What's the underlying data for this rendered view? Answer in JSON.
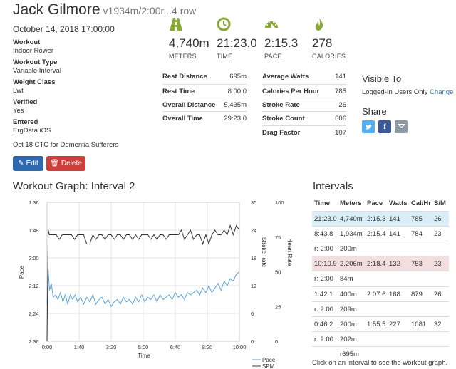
{
  "header": {
    "name": "Jack Gilmore",
    "subtitle": "v1934m/2:00r...4 row"
  },
  "date": "October 14, 2018 17:00:00",
  "fields": [
    {
      "label": "Workout",
      "value": "Indoor Rower"
    },
    {
      "label": "Workout Type",
      "value": "Variable Interval"
    },
    {
      "label": "Weight Class",
      "value": "Lwt"
    },
    {
      "label": "Verified",
      "value": "Yes"
    },
    {
      "label": "Entered",
      "value": "ErgData iOS"
    }
  ],
  "note": "Oct 18 CTC for Dementia Sufferers",
  "buttons": {
    "edit": "Edit",
    "delete": "Delete"
  },
  "big_stats": [
    {
      "icon": "road-icon",
      "value": "4,740m",
      "caption": "METERS"
    },
    {
      "icon": "clock-icon",
      "value": "21:23.0",
      "caption": "TIME"
    },
    {
      "icon": "speedometer-icon",
      "value": "2:15.3",
      "caption": "PACE"
    },
    {
      "icon": "flame-icon",
      "value": "278",
      "caption": "CALORIES"
    }
  ],
  "stats_left": [
    {
      "label": "Rest Distance",
      "value": "695m"
    },
    {
      "label": "Rest Time",
      "value": "8:00.0"
    },
    {
      "label": "Overall Distance",
      "value": "5,435m"
    },
    {
      "label": "Overall Time",
      "value": "29:23.0"
    }
  ],
  "stats_right": [
    {
      "label": "Average Watts",
      "value": "141"
    },
    {
      "label": "Calories Per Hour",
      "value": "785"
    },
    {
      "label": "Stroke Rate",
      "value": "26"
    },
    {
      "label": "Stroke Count",
      "value": "606"
    },
    {
      "label": "Drag Factor",
      "value": "107"
    }
  ],
  "visibility": {
    "heading": "Visible To",
    "text": "Logged-In Users Only",
    "change": "Change"
  },
  "share": {
    "heading": "Share",
    "buttons": [
      "twitter-icon",
      "facebook-icon",
      "email-icon"
    ]
  },
  "graph": {
    "title": "Workout Graph: Interval 2"
  },
  "chart_data": {
    "type": "line",
    "title": "",
    "xlabel": "Time",
    "ylabel_left": "Pace",
    "ylabel_right1": "Stroke Rate",
    "ylabel_right2": "Heart Rate",
    "x_ticks": [
      "0:00",
      "1:40",
      "3:20",
      "5:00",
      "6:40",
      "8:20",
      "10:00"
    ],
    "pace_ticks": [
      "1:36",
      "1:48",
      "2:00",
      "2:12",
      "2:24",
      "2:36"
    ],
    "spm_ticks": [
      "30",
      "24",
      "18",
      "12",
      "6",
      "0"
    ],
    "hr_ticks": [
      "100",
      "75",
      "50",
      "25",
      "0"
    ],
    "xlim": [
      0,
      630
    ],
    "pace_ylim_sec": [
      96,
      156
    ],
    "spm_ylim": [
      0,
      30
    ],
    "grid": true,
    "legend": [
      "Pace",
      "SPM"
    ],
    "legend_placement": "bottom-right",
    "series": [
      {
        "name": "Pace",
        "color": "#5aa3d9",
        "x": [
          0,
          4,
          8,
          14,
          20,
          28,
          36,
          44,
          52,
          60,
          68,
          76,
          84,
          92,
          100,
          110,
          120,
          130,
          140,
          150,
          160,
          170,
          180,
          190,
          200,
          210,
          220,
          230,
          240,
          250,
          260,
          270,
          280,
          290,
          300,
          310,
          320,
          330,
          340,
          350,
          360,
          370,
          380,
          390,
          400,
          410,
          420,
          430,
          440,
          450,
          460,
          470,
          480,
          490,
          500,
          510,
          520,
          530,
          540,
          550,
          560,
          570,
          580,
          590,
          600,
          610,
          620,
          630
        ],
        "y": [
          140,
          125,
          134,
          131,
          137,
          136,
          138,
          135,
          139,
          136,
          140,
          136,
          138,
          136,
          139,
          137,
          140,
          137,
          139,
          136,
          140,
          138,
          137,
          140,
          138,
          141,
          139,
          138,
          140,
          137,
          139,
          138,
          140,
          137,
          139,
          136,
          139,
          137,
          138,
          136,
          139,
          136,
          138,
          137,
          136,
          138,
          135,
          137,
          136,
          138,
          135,
          136,
          135,
          134,
          136,
          133,
          135,
          132,
          135,
          133,
          131,
          134,
          130,
          132,
          129,
          130,
          127,
          126
        ]
      },
      {
        "name": "SPM",
        "color": "#333333",
        "x": [
          0,
          4,
          8,
          14,
          20,
          30,
          40,
          50,
          60,
          70,
          80,
          90,
          100,
          110,
          120,
          130,
          140,
          150,
          160,
          170,
          180,
          190,
          200,
          210,
          220,
          230,
          240,
          250,
          260,
          270,
          280,
          290,
          300,
          310,
          320,
          330,
          340,
          350,
          360,
          370,
          380,
          390,
          400,
          410,
          420,
          430,
          440,
          450,
          460,
          470,
          480,
          490,
          500,
          510,
          520,
          530,
          540,
          550,
          560,
          570,
          580,
          590,
          600,
          610,
          620,
          630
        ],
        "y": [
          0,
          24,
          23,
          23,
          23,
          23,
          22,
          23,
          23,
          23,
          23,
          22,
          23,
          23,
          23,
          21,
          21,
          23,
          22,
          23,
          23,
          22,
          23,
          23,
          22,
          23,
          23,
          22,
          23,
          23,
          22,
          23,
          22,
          23,
          23,
          23,
          22,
          23,
          22,
          23,
          23,
          22,
          23,
          23,
          23,
          23,
          24,
          22,
          23,
          24,
          22,
          23,
          23,
          21,
          23,
          21,
          23,
          24,
          23,
          23,
          24,
          23,
          25,
          23,
          25,
          24
        ]
      }
    ]
  },
  "intervals": {
    "title": "Intervals",
    "columns": [
      "Time",
      "Meters",
      "Pace",
      "Watts",
      "Cal/Hr",
      "S/M"
    ],
    "rows": [
      {
        "cells": [
          "21:23.0",
          "4,740m",
          "2:15.3",
          "141",
          "785",
          "26"
        ],
        "highlight": "blue"
      },
      {
        "cells": [
          "8:43.8",
          "1,934m",
          "2:15.4",
          "141",
          "784",
          "23"
        ],
        "highlight": ""
      },
      {
        "cells": [
          "r: 2:00",
          "200m",
          "",
          "",
          "",
          ""
        ],
        "highlight": ""
      },
      {
        "cells": [
          "10:10.9",
          "2,206m",
          "2:18.4",
          "132",
          "753",
          "23"
        ],
        "highlight": "red"
      },
      {
        "cells": [
          "r: 2:00",
          "84m",
          "",
          "",
          "",
          ""
        ],
        "highlight": ""
      },
      {
        "cells": [
          "1:42.1",
          "400m",
          "2:07.6",
          "168",
          "879",
          "26"
        ],
        "highlight": ""
      },
      {
        "cells": [
          "r: 2:00",
          "209m",
          "",
          "",
          "",
          ""
        ],
        "highlight": ""
      },
      {
        "cells": [
          "0:46.2",
          "200m",
          "1:55.5",
          "227",
          "1081",
          "32"
        ],
        "highlight": ""
      },
      {
        "cells": [
          "r: 2:00",
          "202m",
          "",
          "",
          "",
          ""
        ],
        "highlight": ""
      },
      {
        "cells": [
          "",
          "r695m",
          "",
          "",
          "",
          ""
        ],
        "highlight": ""
      }
    ],
    "footer": "Click on an interval to see the workout graph."
  }
}
